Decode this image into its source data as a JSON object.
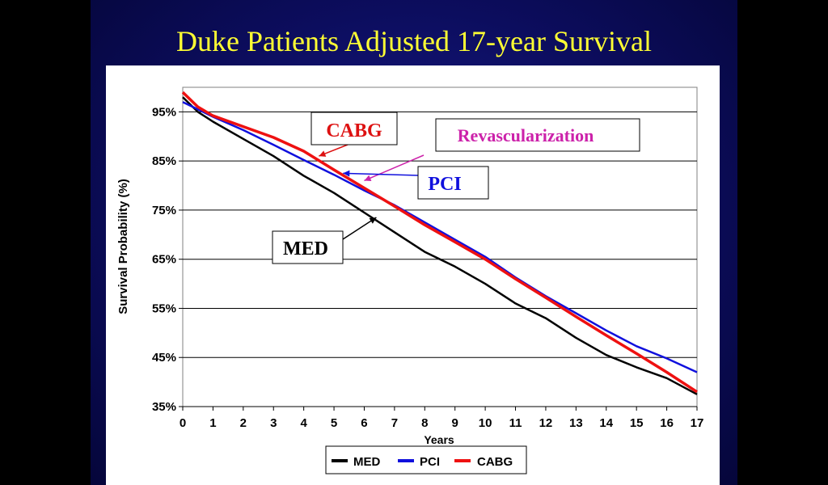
{
  "title": "Duke Patients Adjusted 17-year Survival",
  "chart_data": {
    "type": "line",
    "xlabel": "Years",
    "ylabel": "Survival Probability (%)",
    "xlim": [
      0,
      17
    ],
    "ylim": [
      35,
      100
    ],
    "x_ticks": [
      "0",
      "1",
      "2",
      "3",
      "4",
      "5",
      "6",
      "7",
      "8",
      "9",
      "10",
      "11",
      "12",
      "13",
      "14",
      "15",
      "16",
      "17"
    ],
    "y_ticks": [
      {
        "value": 35,
        "label": "35%"
      },
      {
        "value": 45,
        "label": "45%"
      },
      {
        "value": 55,
        "label": "55%"
      },
      {
        "value": 65,
        "label": "65%"
      },
      {
        "value": 75,
        "label": "75%"
      },
      {
        "value": 85,
        "label": "85%"
      },
      {
        "value": 95,
        "label": "95%"
      }
    ],
    "grid": "horizontal",
    "legend": "bottom",
    "series": [
      {
        "name": "MED",
        "color": "#000000",
        "x": [
          0,
          0.5,
          1,
          2,
          3,
          4,
          5,
          6,
          7,
          8,
          9,
          10,
          11,
          12,
          13,
          14,
          15,
          16,
          17
        ],
        "y": [
          98,
          95,
          93,
          89.5,
          86,
          82,
          78.5,
          74.5,
          70.5,
          66.5,
          63.5,
          60,
          56,
          53,
          49,
          45.5,
          43,
          40.8,
          37.5
        ]
      },
      {
        "name": "PCI",
        "color": "#1010dd",
        "x": [
          0,
          0.5,
          1,
          2,
          3,
          4,
          5,
          6,
          7,
          8,
          9,
          10,
          11,
          12,
          13,
          14,
          15,
          16,
          17
        ],
        "y": [
          97,
          95.5,
          94,
          91.3,
          88.3,
          85.2,
          82.2,
          79,
          76,
          72.5,
          69,
          65.5,
          61.3,
          57.5,
          54,
          50.5,
          47.3,
          44.8,
          42
        ]
      },
      {
        "name": "CABG",
        "color": "#ee1111",
        "x": [
          0,
          0.5,
          1,
          2,
          3,
          4,
          5,
          6,
          7,
          8,
          9,
          10,
          11,
          12,
          13,
          14,
          15,
          16,
          17
        ],
        "y": [
          99,
          96,
          94.2,
          92,
          89.8,
          87,
          83.2,
          79.5,
          75.8,
          72,
          68.5,
          65,
          61,
          57.2,
          53.3,
          49.5,
          45.8,
          42,
          38
        ]
      }
    ],
    "annotations": [
      {
        "text": "CABG",
        "color": "#dd1111",
        "target": [
          4.5,
          86
        ]
      },
      {
        "text": "Revascularization",
        "color": "#cc22aa",
        "target": [
          6.0,
          81
        ]
      },
      {
        "text": "PCI",
        "color": "#1010dd",
        "target": [
          5.3,
          82.5
        ]
      },
      {
        "text": "MED",
        "color": "#000000",
        "target": [
          6.4,
          73.5
        ]
      }
    ]
  }
}
